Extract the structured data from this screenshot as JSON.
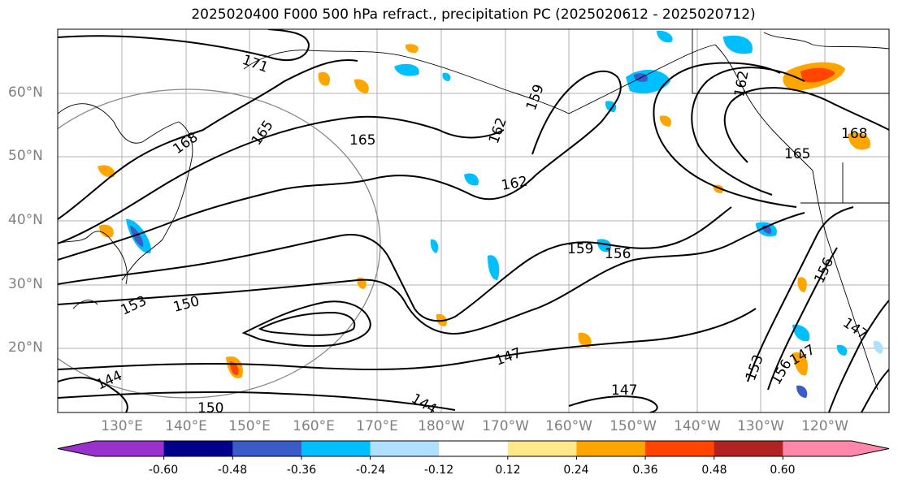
{
  "title": "2025020400 F000 500 hPa refract., precipitation PC (2025020612 - 2025020712)",
  "lat_labels": [
    "60°N",
    "50°N",
    "40°N",
    "30°N",
    "20°N"
  ],
  "lon_labels": [
    "130°E",
    "140°E",
    "150°E",
    "160°E",
    "170°E",
    "180°W",
    "170°W",
    "160°W",
    "150°W",
    "140°W",
    "130°W",
    "120°W"
  ],
  "contour_labels": [
    "171",
    "168",
    "165",
    "165",
    "162",
    "162",
    "159",
    "159",
    "156",
    "156",
    "153",
    "150",
    "147",
    "147",
    "147",
    "144",
    "150",
    "168",
    "165",
    "162",
    "153",
    "156",
    "144",
    "147"
  ],
  "colorbar": {
    "tick_labels": [
      "-0.60",
      "-0.48",
      "-0.36",
      "-0.24",
      "-0.12",
      "0.12",
      "0.24",
      "0.36",
      "0.48",
      "0.60"
    ],
    "colors": [
      "#9932CC",
      "#00008B",
      "#3A5BC8",
      "#00BFFF",
      "#B0E0FF",
      "#FFFFFF",
      "#FFE88A",
      "#FFA500",
      "#FF4500",
      "#B22222",
      "#FF88AA"
    ]
  }
}
